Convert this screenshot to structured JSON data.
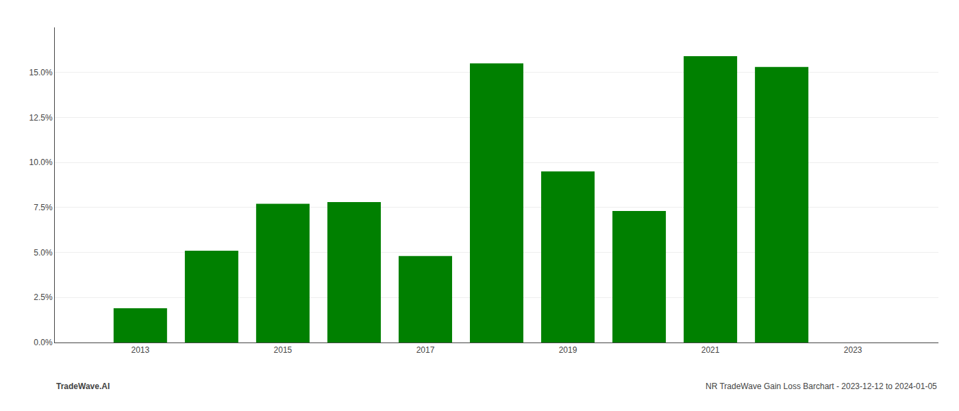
{
  "chart_data": {
    "type": "bar",
    "x": [
      2013,
      2014,
      2015,
      2016,
      2017,
      2018,
      2019,
      2020,
      2021,
      2022
    ],
    "values": [
      0.019,
      0.051,
      0.077,
      0.078,
      0.048,
      0.155,
      0.095,
      0.073,
      0.159,
      0.153
    ],
    "color": "#008000",
    "xlim": [
      2011.8,
      2024.2
    ],
    "xticks": [
      2013,
      2015,
      2017,
      2019,
      2021,
      2023
    ],
    "ylim": [
      0,
      0.175
    ],
    "yticks": [
      {
        "value": 0.0,
        "label": "0.0%"
      },
      {
        "value": 0.025,
        "label": "2.5%"
      },
      {
        "value": 0.05,
        "label": "5.0%"
      },
      {
        "value": 0.075,
        "label": "7.5%"
      },
      {
        "value": 0.1,
        "label": "10.0%"
      },
      {
        "value": 0.125,
        "label": "12.5%"
      },
      {
        "value": 0.15,
        "label": "15.0%"
      }
    ],
    "grid": true,
    "annotations": [
      "TradeWave.AI",
      "NR TradeWave Gain Loss Barchart - 2023-12-12 to 2024-01-05"
    ]
  }
}
